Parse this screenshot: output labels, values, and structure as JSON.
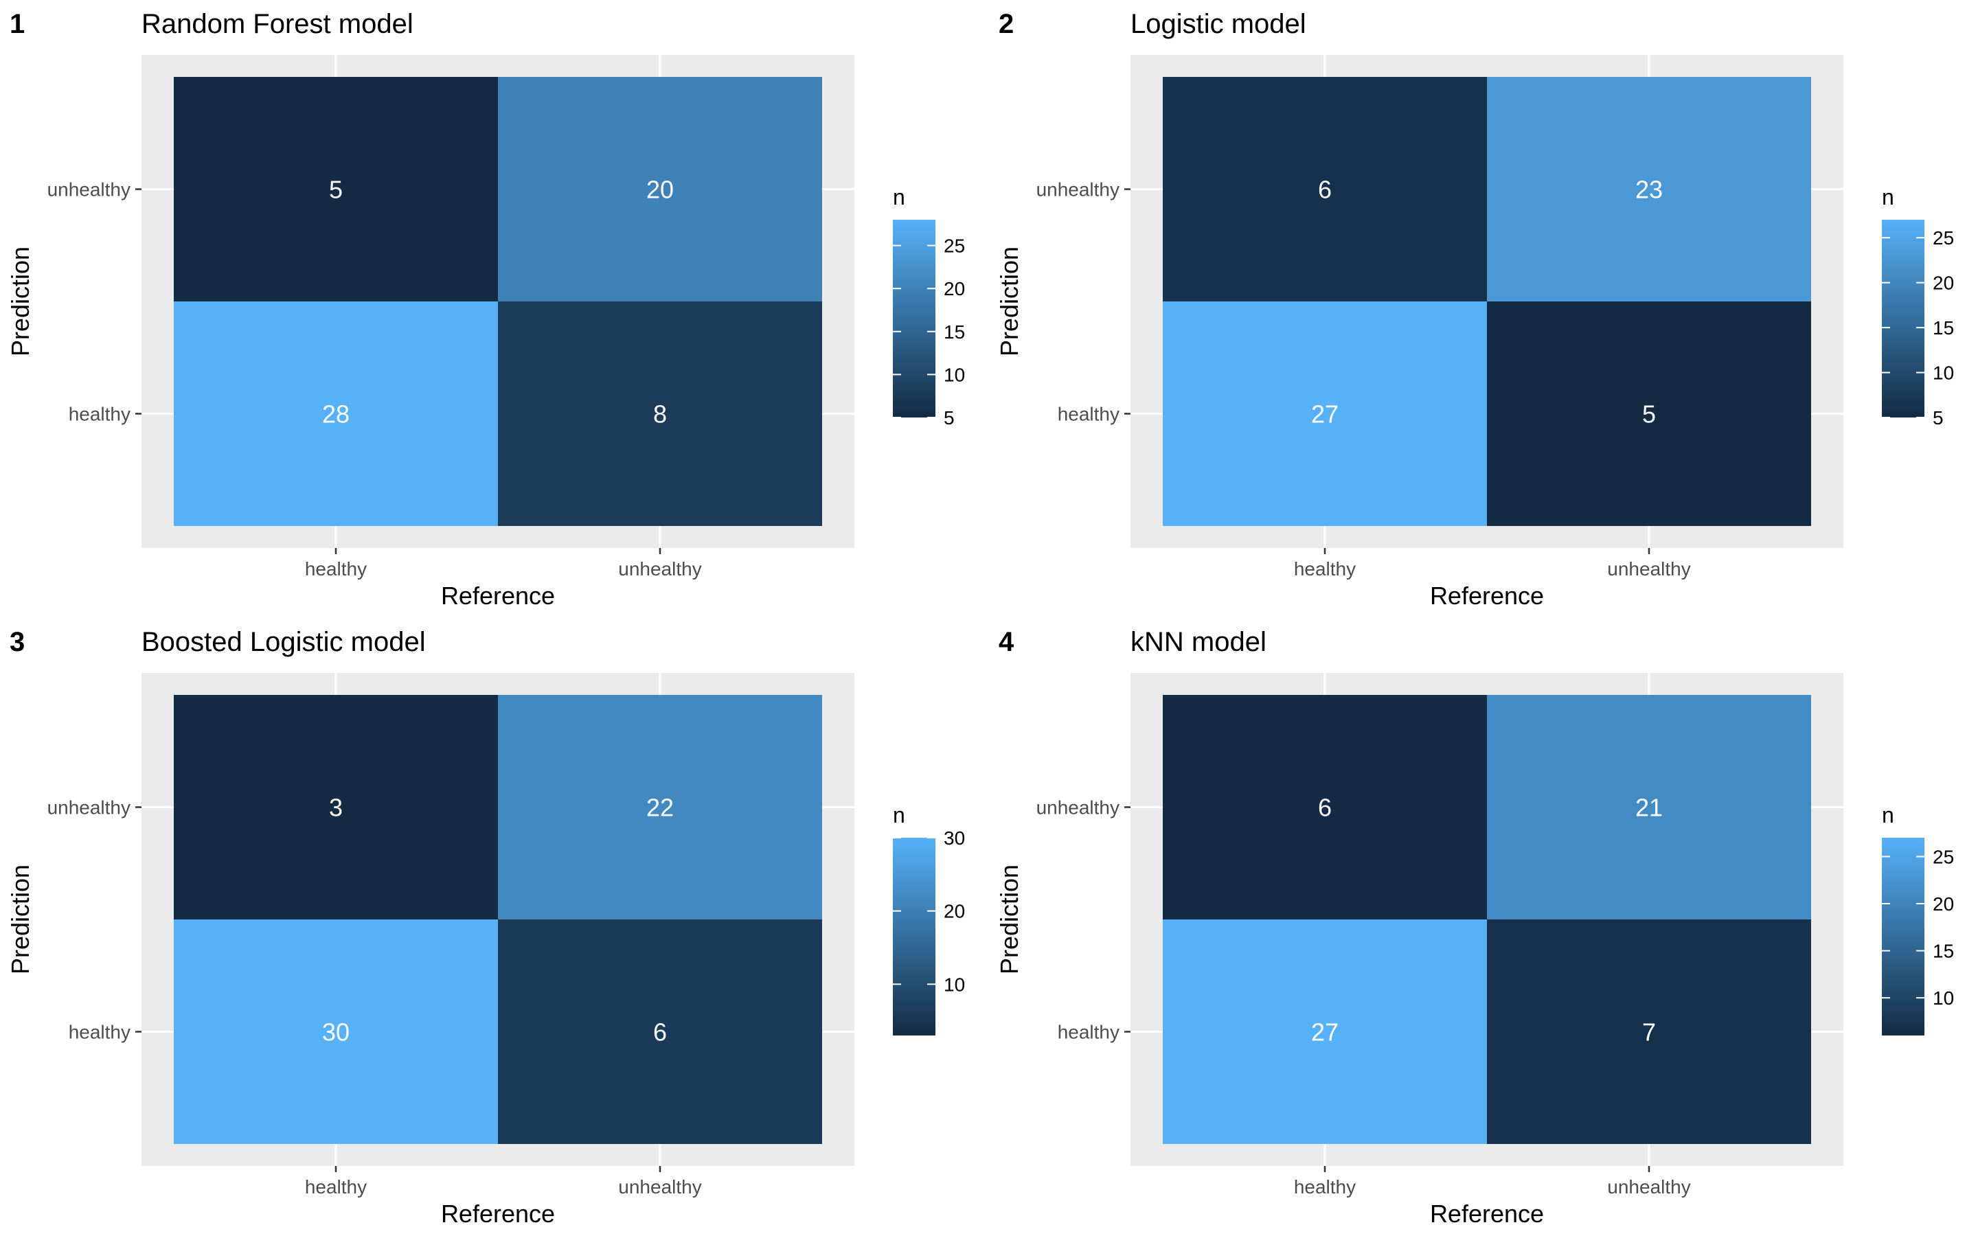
{
  "chart_data": [
    {
      "type": "heatmap",
      "tag": "1",
      "title": "Random Forest model",
      "xlabel": "Reference",
      "ylabel": "Prediction",
      "x_categories": [
        "healthy",
        "unhealthy"
      ],
      "y_categories": [
        "healthy",
        "unhealthy"
      ],
      "cells": [
        {
          "x": "healthy",
          "y": "unhealthy",
          "n": 5
        },
        {
          "x": "unhealthy",
          "y": "unhealthy",
          "n": 20
        },
        {
          "x": "healthy",
          "y": "healthy",
          "n": 28
        },
        {
          "x": "unhealthy",
          "y": "healthy",
          "n": 8
        }
      ],
      "legend": {
        "title": "n",
        "ticks": [
          5,
          10,
          15,
          20,
          25
        ],
        "range": [
          5,
          28
        ]
      },
      "colors": {
        "low": "#132B43",
        "high": "#56B1F7",
        "text": "#ffffff"
      }
    },
    {
      "type": "heatmap",
      "tag": "2",
      "title": "Logistic model",
      "xlabel": "Reference",
      "ylabel": "Prediction",
      "x_categories": [
        "healthy",
        "unhealthy"
      ],
      "y_categories": [
        "healthy",
        "unhealthy"
      ],
      "cells": [
        {
          "x": "healthy",
          "y": "unhealthy",
          "n": 6
        },
        {
          "x": "unhealthy",
          "y": "unhealthy",
          "n": 23
        },
        {
          "x": "healthy",
          "y": "healthy",
          "n": 27
        },
        {
          "x": "unhealthy",
          "y": "healthy",
          "n": 5
        }
      ],
      "legend": {
        "title": "n",
        "ticks": [
          5,
          10,
          15,
          20,
          25
        ],
        "range": [
          5,
          27
        ]
      },
      "colors": {
        "low": "#132B43",
        "high": "#56B1F7",
        "text": "#ffffff"
      }
    },
    {
      "type": "heatmap",
      "tag": "3",
      "title": "Boosted Logistic model",
      "xlabel": "Reference",
      "ylabel": "Prediction",
      "x_categories": [
        "healthy",
        "unhealthy"
      ],
      "y_categories": [
        "healthy",
        "unhealthy"
      ],
      "cells": [
        {
          "x": "healthy",
          "y": "unhealthy",
          "n": 3
        },
        {
          "x": "unhealthy",
          "y": "unhealthy",
          "n": 22
        },
        {
          "x": "healthy",
          "y": "healthy",
          "n": 30
        },
        {
          "x": "unhealthy",
          "y": "healthy",
          "n": 6
        }
      ],
      "legend": {
        "title": "n",
        "ticks": [
          10,
          20,
          30
        ],
        "range": [
          3,
          30
        ]
      },
      "colors": {
        "low": "#132B43",
        "high": "#56B1F7",
        "text": "#ffffff"
      }
    },
    {
      "type": "heatmap",
      "tag": "4",
      "title": "kNN model",
      "xlabel": "Reference",
      "ylabel": "Prediction",
      "x_categories": [
        "healthy",
        "unhealthy"
      ],
      "y_categories": [
        "healthy",
        "unhealthy"
      ],
      "cells": [
        {
          "x": "healthy",
          "y": "unhealthy",
          "n": 6
        },
        {
          "x": "unhealthy",
          "y": "unhealthy",
          "n": 21
        },
        {
          "x": "healthy",
          "y": "healthy",
          "n": 27
        },
        {
          "x": "unhealthy",
          "y": "healthy",
          "n": 7
        }
      ],
      "legend": {
        "title": "n",
        "ticks": [
          10,
          15,
          20,
          25
        ],
        "range": [
          6,
          27
        ]
      },
      "colors": {
        "low": "#132B43",
        "high": "#56B1F7",
        "text": "#ffffff"
      }
    }
  ]
}
